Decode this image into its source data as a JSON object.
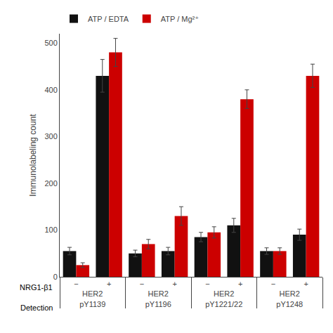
{
  "chart_data": {
    "type": "bar",
    "ylabel": "Immunolabeling count",
    "x": [
      [
        "HER2\npY1139",
        "−"
      ],
      [
        "HER2\npY1139",
        "+"
      ],
      [
        "HER2\npY1196",
        "−"
      ],
      [
        "HER2\npY1196",
        "+"
      ],
      [
        "HER2\npY1221/22",
        "−"
      ],
      [
        "HER2\npY1221/22",
        "+"
      ],
      [
        "HER2\npY1248",
        "−"
      ],
      [
        "HER2\npY1248",
        "+"
      ]
    ],
    "x_level_labels": [
      "Detection",
      "NRG1-β1"
    ],
    "series": [
      {
        "name": "ATP / EDTA",
        "color": "#111111",
        "values": [
          55,
          430,
          50,
          55,
          85,
          110,
          55,
          90
        ],
        "errors": [
          8,
          35,
          7,
          8,
          10,
          15,
          7,
          12
        ]
      },
      {
        "name": "ATP / Mg²⁺",
        "color": "#cc0000",
        "values": [
          25,
          480,
          70,
          130,
          95,
          380,
          55,
          430
        ],
        "errors": [
          5,
          30,
          10,
          20,
          12,
          20,
          7,
          25
        ]
      }
    ],
    "ylim": [
      0,
      520
    ],
    "yticks": [
      0,
      100,
      200,
      300,
      400,
      500
    ],
    "grid": false,
    "legend": "upper left"
  }
}
